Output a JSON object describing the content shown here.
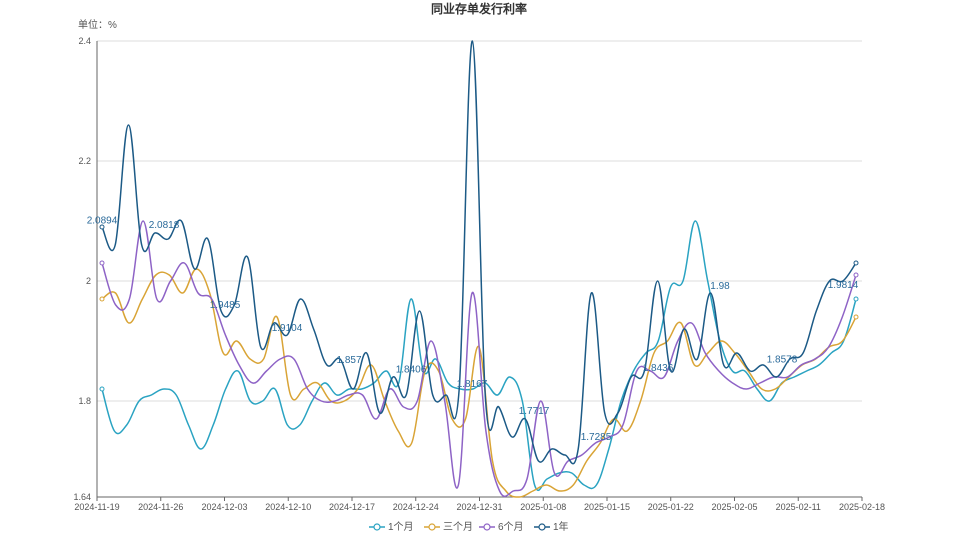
{
  "chart_data": {
    "type": "line",
    "title": "同业存单发行利率",
    "unit_label": "单位：%",
    "xlabel": "",
    "ylabel": "",
    "ylim": [
      1.64,
      2.4
    ],
    "y_ticks": [
      "1.64",
      "1.8",
      "2",
      "2.2",
      "2.4"
    ],
    "x_tick_labels": [
      "2024-11-19",
      "2024-11-26",
      "2024-12-03",
      "2024-12-10",
      "2024-12-17",
      "2024-12-24",
      "2024-12-31",
      "2025-01-08",
      "2025-01-15",
      "2025-01-22",
      "2025-02-05",
      "2025-02-11",
      "2025-02-18"
    ],
    "grid": "horizontal",
    "legend_position": "bottom",
    "series": [
      {
        "name": "1个月",
        "color": "#2aa3c2",
        "values": [
          1.82,
          1.75,
          1.76,
          1.8,
          1.81,
          1.82,
          1.81,
          1.76,
          1.72,
          1.76,
          1.82,
          1.85,
          1.8,
          1.8,
          1.82,
          1.76,
          1.76,
          1.8,
          1.83,
          1.81,
          1.82,
          1.82,
          1.83,
          1.85,
          1.83,
          1.97,
          1.85,
          1.87,
          1.83,
          1.82,
          1.82,
          1.83,
          1.81,
          1.84,
          1.8,
          1.66,
          1.67,
          1.68,
          1.68,
          1.66,
          1.66,
          1.72,
          1.8,
          1.85,
          1.88,
          1.9,
          1.99,
          2.0,
          2.1,
          2.0,
          1.9,
          1.85,
          1.85,
          1.82,
          1.8,
          1.83,
          1.84,
          1.85,
          1.86,
          1.88,
          1.9,
          1.97
        ]
      },
      {
        "name": "三个月",
        "color": "#d9a436",
        "values": [
          1.97,
          1.98,
          1.93,
          1.97,
          2.01,
          2.01,
          1.98,
          2.02,
          1.98,
          1.88,
          1.9,
          1.87,
          1.87,
          1.94,
          1.81,
          1.82,
          1.83,
          1.8,
          1.8,
          1.82,
          1.86,
          1.8,
          1.75,
          1.73,
          1.85,
          1.85,
          1.77,
          1.77,
          1.89,
          1.7,
          1.65,
          1.64,
          1.65,
          1.66,
          1.65,
          1.66,
          1.7,
          1.73,
          1.77,
          1.75,
          1.8,
          1.88,
          1.9,
          1.93,
          1.86,
          1.88,
          1.9,
          1.88,
          1.85,
          1.82,
          1.82,
          1.84,
          1.86,
          1.87,
          1.89,
          1.9,
          1.94
        ]
      },
      {
        "name": "6个月",
        "color": "#8e63c6",
        "values": [
          2.03,
          1.96,
          1.97,
          2.1,
          1.97,
          2.0,
          2.03,
          1.98,
          1.97,
          1.91,
          1.86,
          1.83,
          1.85,
          1.87,
          1.87,
          1.82,
          1.8,
          1.8,
          1.81,
          1.81,
          1.77,
          1.82,
          1.79,
          1.8,
          1.9,
          1.8,
          1.66,
          1.98,
          1.75,
          1.65,
          1.65,
          1.67,
          1.8,
          1.68,
          1.7,
          1.71,
          1.73,
          1.74,
          1.76,
          1.85,
          1.85,
          1.84,
          1.9,
          1.93,
          1.88,
          1.85,
          1.83,
          1.82,
          1.83,
          1.84,
          1.84,
          1.86,
          1.87,
          1.89,
          1.94,
          2.01
        ]
      },
      {
        "name": "1年",
        "color": "#1c5a86",
        "values": [
          2.09,
          2.06,
          2.26,
          2.06,
          2.08,
          2.07,
          2.1,
          2.02,
          2.07,
          1.95,
          1.96,
          2.04,
          1.89,
          1.93,
          1.91,
          1.97,
          1.92,
          1.86,
          1.87,
          1.82,
          1.88,
          1.78,
          1.84,
          1.81,
          1.95,
          1.81,
          1.81,
          1.82,
          2.4,
          1.8,
          1.79,
          1.74,
          1.77,
          1.7,
          1.72,
          1.71,
          1.72,
          1.98,
          1.78,
          1.78,
          1.84,
          1.85,
          2.0,
          1.85,
          1.92,
          1.87,
          1.98,
          1.86,
          1.88,
          1.85,
          1.86,
          1.84,
          1.87,
          1.88,
          1.95,
          2.0,
          2.0,
          2.03
        ]
      }
    ],
    "data_labels": [
      {
        "text": "2.0894",
        "value": 2.0894,
        "series": "1年"
      },
      {
        "text": "2.0818",
        "value": 2.0818,
        "series": "1年"
      },
      {
        "text": "1.9485",
        "value": 1.9485,
        "series": "1年"
      },
      {
        "text": "1.9104",
        "value": 1.9104,
        "series": "1年"
      },
      {
        "text": "1.857",
        "value": 1.857,
        "series": "1年"
      },
      {
        "text": "1.8406",
        "value": 1.8406,
        "series": "1年"
      },
      {
        "text": "1.8167",
        "value": 1.8167,
        "series": "1年"
      },
      {
        "text": "1.7717",
        "value": 1.7717,
        "series": "1年"
      },
      {
        "text": "1.7285",
        "value": 1.7285,
        "series": "1年"
      },
      {
        "text": "1.8436",
        "value": 1.8436,
        "series": "1年"
      },
      {
        "text": "1.98",
        "value": 1.98,
        "series": "1年"
      },
      {
        "text": "1.8578",
        "value": 1.8578,
        "series": "1年"
      },
      {
        "text": "1.9814",
        "value": 1.9814,
        "series": "1年"
      }
    ]
  }
}
